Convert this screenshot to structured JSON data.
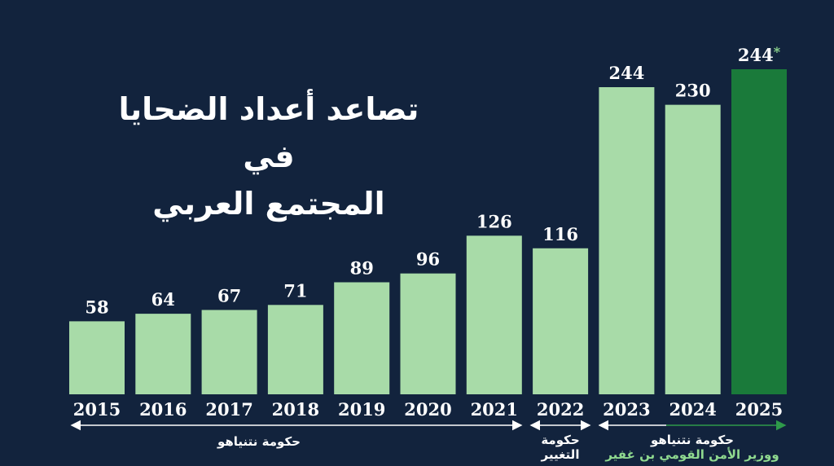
{
  "chart_data": {
    "type": "bar",
    "title": "تصاعد أعداد الضحايا في المجتمع العربي",
    "title_lines": [
      "تصاعد أعداد الضحايا في",
      "المجتمع العربي"
    ],
    "categories": [
      "2015",
      "2016",
      "2017",
      "2018",
      "2019",
      "2020",
      "2021",
      "2022",
      "2023",
      "2024",
      "2025"
    ],
    "values": [
      58,
      64,
      67,
      71,
      89,
      96,
      126,
      116,
      244,
      230,
      244
    ],
    "value_labels": [
      "58",
      "64",
      "67",
      "71",
      "89",
      "96",
      "126",
      "116",
      "244",
      "230",
      "244"
    ],
    "highlight": {
      "category": "2025",
      "marker": "*"
    },
    "colors": {
      "background": "#12233d",
      "bar": "#a8dba8",
      "highlight_bar": "#1a7a3a",
      "asterisk": "#8fd98f",
      "secondary_text": "#8fd98f",
      "arrow_green": "#2e9a4a"
    },
    "ylim": [
      0,
      260
    ],
    "grid": false,
    "periods": [
      {
        "from": "2015",
        "to": "2021",
        "label": "حكومة نتنياهو"
      },
      {
        "from": "2022",
        "to": "2022",
        "label_lines": [
          "حكومة",
          "التغيير"
        ]
      },
      {
        "from": "2023",
        "to": "2025",
        "label": "حكومة نتنياهو",
        "sublabel": "ووزير الأمن القومي بن غفير"
      }
    ]
  }
}
